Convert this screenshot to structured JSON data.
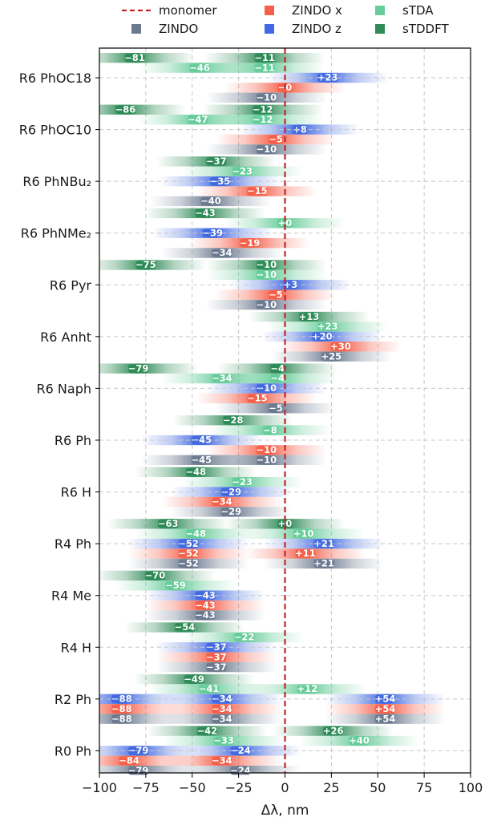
{
  "chart_data": {
    "type": "bar",
    "subtype": "horizontal-shifts-with-gradient-strips",
    "xlabel": "Δλ, nm",
    "xlim": [
      -100,
      100
    ],
    "xticks": [
      -100,
      -75,
      -50,
      -25,
      0,
      25,
      50,
      75,
      100
    ],
    "xtick_labels": [
      "−100",
      "−75",
      "−50",
      "−25",
      "0",
      "25",
      "50",
      "75",
      "100"
    ],
    "grid": true,
    "reference_line": {
      "value": 0,
      "label": "monomer",
      "color": "#c1272d",
      "style": "dashed"
    },
    "legend": {
      "placement": "top",
      "entries": [
        {
          "key": "monomer",
          "label": "monomer",
          "kind": "line",
          "color": "#c1272d"
        },
        {
          "key": "ZINDO_x",
          "label": "ZINDO x",
          "kind": "square",
          "color": "#f5604a"
        },
        {
          "key": "sTDA",
          "label": "sTDA",
          "kind": "square",
          "color": "#66cc99"
        },
        {
          "key": "ZINDO",
          "label": "ZINDO",
          "kind": "square",
          "color": "#6b7a8f"
        },
        {
          "key": "ZINDO_z",
          "label": "ZINDO z",
          "kind": "square",
          "color": "#4169e1"
        },
        {
          "key": "sTDDFT",
          "label": "sTDDFT",
          "kind": "square",
          "color": "#2e8b57"
        }
      ]
    },
    "series_colors": {
      "sTDDFT": "#2e8b57",
      "sTDA": "#66cc99",
      "ZINDO_z": "#4169e1",
      "ZINDO_x": "#f5604a",
      "ZINDO": "#6b7a8f"
    },
    "label_text_colors": {
      "sTDDFT": "#ffffff",
      "sTDA": "#ffffff",
      "ZINDO_z": "#ffffff",
      "ZINDO_x": "#ffffff",
      "ZINDO": "#ffffff"
    },
    "series_order": [
      "sTDDFT",
      "sTDA",
      "ZINDO_z",
      "ZINDO_x",
      "ZINDO"
    ],
    "molecules": [
      {
        "name": "R6 PhOC18",
        "values": {
          "sTDDFT": [
            {
              "v": -81,
              "t": "−81"
            },
            {
              "v": -11,
              "t": "−11"
            }
          ],
          "sTDA": [
            {
              "v": -46,
              "t": "−46"
            },
            {
              "v": -11,
              "t": "−11"
            }
          ],
          "ZINDO_z": [
            {
              "v": 23,
              "t": "+23"
            }
          ],
          "ZINDO_x": [
            {
              "v": 0,
              "t": "−0"
            }
          ],
          "ZINDO": [
            {
              "v": -10,
              "t": "−10"
            }
          ]
        }
      },
      {
        "name": "R6 PhOC10",
        "values": {
          "sTDDFT": [
            {
              "v": -86,
              "t": "−86"
            },
            {
              "v": -12,
              "t": "−12"
            }
          ],
          "sTDA": [
            {
              "v": -47,
              "t": "−47"
            },
            {
              "v": -12,
              "t": "−12"
            }
          ],
          "ZINDO_z": [
            {
              "v": 8,
              "t": "+8"
            }
          ],
          "ZINDO_x": [
            {
              "v": -5,
              "t": "−5"
            }
          ],
          "ZINDO": [
            {
              "v": -10,
              "t": "−10"
            }
          ]
        }
      },
      {
        "name": "R6 PhNBu₂",
        "values": {
          "sTDDFT": [
            {
              "v": -37,
              "t": "−37"
            }
          ],
          "sTDA": [
            {
              "v": -23,
              "t": "−23"
            }
          ],
          "ZINDO_z": [
            {
              "v": -35,
              "t": "−35"
            }
          ],
          "ZINDO_x": [
            {
              "v": -15,
              "t": "−15"
            }
          ],
          "ZINDO": [
            {
              "v": -40,
              "t": "−40"
            }
          ]
        }
      },
      {
        "name": "R6 PhNMe₂",
        "values": {
          "sTDDFT": [
            {
              "v": -43,
              "t": "−43"
            }
          ],
          "sTDA": [
            {
              "v": 0,
              "t": "+0"
            }
          ],
          "ZINDO_z": [
            {
              "v": -39,
              "t": "−39"
            }
          ],
          "ZINDO_x": [
            {
              "v": -19,
              "t": "−19"
            }
          ],
          "ZINDO": [
            {
              "v": -34,
              "t": "−34"
            }
          ]
        }
      },
      {
        "name": "R6 Pyr",
        "values": {
          "sTDDFT": [
            {
              "v": -75,
              "t": "−75"
            },
            {
              "v": -10,
              "t": "−10"
            }
          ],
          "sTDA": [
            {
              "v": -10,
              "t": "−10"
            }
          ],
          "ZINDO_z": [
            {
              "v": 3,
              "t": "+3"
            }
          ],
          "ZINDO_x": [
            {
              "v": -5,
              "t": "−5"
            }
          ],
          "ZINDO": [
            {
              "v": -10,
              "t": "−10"
            }
          ]
        }
      },
      {
        "name": "R6 Anht",
        "values": {
          "sTDDFT": [
            {
              "v": 13,
              "t": "+13"
            }
          ],
          "sTDA": [
            {
              "v": 23,
              "t": "+23"
            }
          ],
          "ZINDO_z": [
            {
              "v": 20,
              "t": "+20"
            }
          ],
          "ZINDO_x": [
            {
              "v": 30,
              "t": "+30"
            }
          ],
          "ZINDO": [
            {
              "v": 25,
              "t": "+25"
            }
          ]
        }
      },
      {
        "name": "R6 Naph",
        "values": {
          "sTDDFT": [
            {
              "v": -79,
              "t": "−79"
            },
            {
              "v": -4,
              "t": "−4"
            }
          ],
          "sTDA": [
            {
              "v": -34,
              "t": "−34"
            },
            {
              "v": -4,
              "t": "−4"
            }
          ],
          "ZINDO_z": [
            {
              "v": -10,
              "t": "−10"
            }
          ],
          "ZINDO_x": [
            {
              "v": -15,
              "t": "−15"
            }
          ],
          "ZINDO": [
            {
              "v": -5,
              "t": "−5"
            }
          ]
        }
      },
      {
        "name": "R6 Ph",
        "values": {
          "sTDDFT": [
            {
              "v": -28,
              "t": "−28"
            }
          ],
          "sTDA": [
            {
              "v": -8,
              "t": "−8"
            }
          ],
          "ZINDO_z": [
            {
              "v": -45,
              "t": "−45"
            }
          ],
          "ZINDO_x": [
            {
              "v": -10,
              "t": "−10"
            }
          ],
          "ZINDO": [
            {
              "v": -45,
              "t": "−45"
            },
            {
              "v": -10,
              "t": "−10"
            }
          ]
        }
      },
      {
        "name": "R6 H",
        "values": {
          "sTDDFT": [
            {
              "v": -48,
              "t": "−48"
            }
          ],
          "sTDA": [
            {
              "v": -23,
              "t": "−23"
            }
          ],
          "ZINDO_z": [
            {
              "v": -29,
              "t": "−29"
            }
          ],
          "ZINDO_x": [
            {
              "v": -34,
              "t": "−34"
            }
          ],
          "ZINDO": [
            {
              "v": -29,
              "t": "−29"
            }
          ]
        }
      },
      {
        "name": "R4 Ph",
        "values": {
          "sTDDFT": [
            {
              "v": -63,
              "t": "−63"
            },
            {
              "v": 0,
              "t": "+0"
            }
          ],
          "sTDA": [
            {
              "v": -48,
              "t": "−48"
            },
            {
              "v": 10,
              "t": "+10"
            }
          ],
          "ZINDO_z": [
            {
              "v": -52,
              "t": "−52"
            },
            {
              "v": 21,
              "t": "+21"
            }
          ],
          "ZINDO_x": [
            {
              "v": -52,
              "t": "−52"
            },
            {
              "v": 11,
              "t": "+11"
            }
          ],
          "ZINDO": [
            {
              "v": -52,
              "t": "−52"
            },
            {
              "v": 21,
              "t": "+21"
            }
          ]
        }
      },
      {
        "name": "R4 Me",
        "values": {
          "sTDDFT": [
            {
              "v": -70,
              "t": "−70"
            }
          ],
          "sTDA": [
            {
              "v": -59,
              "t": "−59"
            }
          ],
          "ZINDO_z": [
            {
              "v": -43,
              "t": "−43"
            }
          ],
          "ZINDO_x": [
            {
              "v": -43,
              "t": "−43"
            }
          ],
          "ZINDO": [
            {
              "v": -43,
              "t": "−43"
            }
          ]
        }
      },
      {
        "name": "R4 H",
        "values": {
          "sTDDFT": [
            {
              "v": -54,
              "t": "−54"
            }
          ],
          "sTDA": [
            {
              "v": -22,
              "t": "−22"
            }
          ],
          "ZINDO_z": [
            {
              "v": -37,
              "t": "−37"
            }
          ],
          "ZINDO_x": [
            {
              "v": -37,
              "t": "−37"
            }
          ],
          "ZINDO": [
            {
              "v": -37,
              "t": "−37"
            }
          ]
        }
      },
      {
        "name": "R2 Ph",
        "values": {
          "sTDDFT": [
            {
              "v": -49,
              "t": "−49"
            }
          ],
          "sTDA": [
            {
              "v": -41,
              "t": "−41"
            },
            {
              "v": 12,
              "t": "+12"
            }
          ],
          "ZINDO_z": [
            {
              "v": -88,
              "t": "−88"
            },
            {
              "v": -34,
              "t": "−34"
            },
            {
              "v": 54,
              "t": "+54"
            }
          ],
          "ZINDO_x": [
            {
              "v": -88,
              "t": "−88"
            },
            {
              "v": -34,
              "t": "−34"
            },
            {
              "v": 54,
              "t": "+54"
            }
          ],
          "ZINDO": [
            {
              "v": -88,
              "t": "−88"
            },
            {
              "v": -34,
              "t": "−34"
            },
            {
              "v": 54,
              "t": "+54"
            }
          ]
        }
      },
      {
        "name": "R0 Ph",
        "values": {
          "sTDDFT": [
            {
              "v": -42,
              "t": "−42"
            },
            {
              "v": 26,
              "t": "+26"
            }
          ],
          "sTDA": [
            {
              "v": -33,
              "t": "−33"
            },
            {
              "v": 40,
              "t": "+40"
            }
          ],
          "ZINDO_z": [
            {
              "v": -79,
              "t": "−79"
            },
            {
              "v": -24,
              "t": "−24"
            }
          ],
          "ZINDO_x": [
            {
              "v": -84,
              "t": "−84"
            },
            {
              "v": -34,
              "t": "−34"
            }
          ],
          "ZINDO": [
            {
              "v": -79,
              "t": "−79"
            },
            {
              "v": -24,
              "t": "−24"
            }
          ]
        }
      }
    ]
  }
}
